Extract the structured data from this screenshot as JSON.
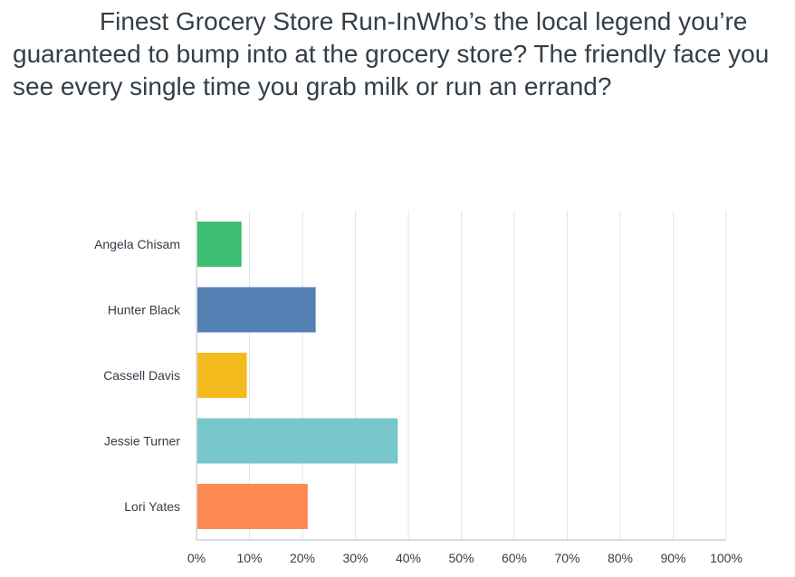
{
  "chart_data": {
    "type": "bar",
    "orientation": "horizontal",
    "title": "Finest Grocery Store Run-InWho’s the local legend you’re guaranteed to bump into at the grocery store? The friendly face you see every single time you grab milk or run an errand?",
    "categories": [
      "Angela Chisam",
      "Hunter Black",
      "Cassell Davis",
      "Jessie Turner",
      "Lori Yates"
    ],
    "values": [
      8.5,
      22.5,
      9.5,
      38.0,
      21.0
    ],
    "colors": [
      "#3dbd72",
      "#5580b4",
      "#f4bb1f",
      "#77c7cb",
      "#fc8a52"
    ],
    "xlim": [
      0,
      100
    ],
    "x_ticks": [
      "0%",
      "10%",
      "20%",
      "30%",
      "40%",
      "50%",
      "60%",
      "70%",
      "80%",
      "90%",
      "100%"
    ],
    "grid": true
  }
}
